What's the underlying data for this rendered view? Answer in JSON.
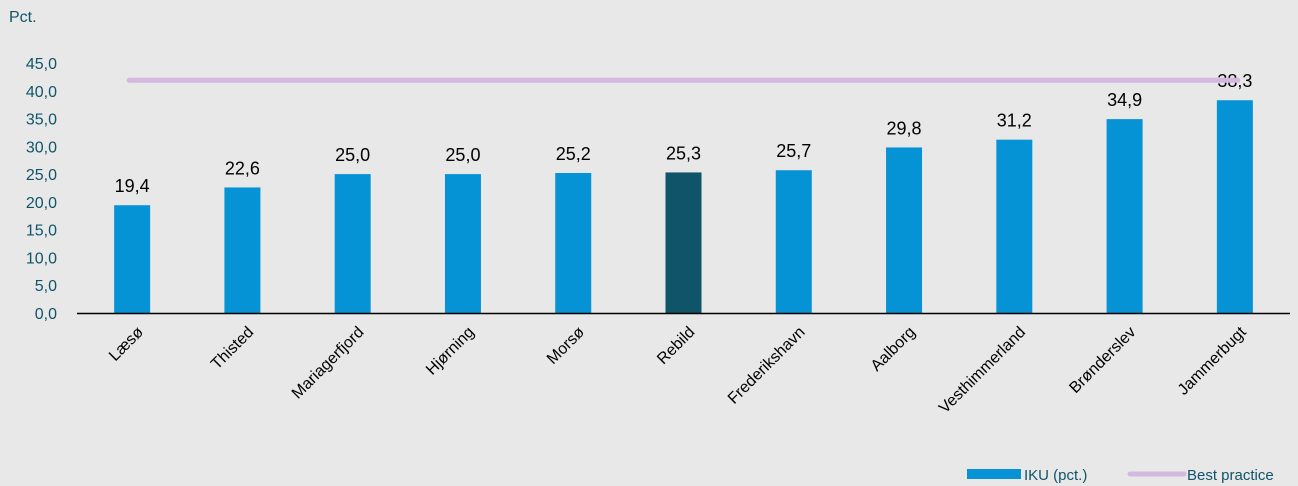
{
  "chart_data": {
    "type": "bar",
    "ylabel": "Pct.",
    "categories": [
      "Læsø",
      "Thisted",
      "Mariagerfjord",
      "Hjørning",
      "Morsø",
      "Rebild",
      "Frederikshavn",
      "Aalborg",
      "Vesthimmerland",
      "Brønderslev",
      "Jammerbugt"
    ],
    "series": [
      {
        "name": "IKU (pct.)",
        "values": [
          19.4,
          22.6,
          25.0,
          25.0,
          25.2,
          25.3,
          25.7,
          29.8,
          31.2,
          34.9,
          38.3
        ],
        "data_labels": [
          "19,4",
          "22,6",
          "25,0",
          "25,0",
          "25,2",
          "25,3",
          "25,7",
          "29,8",
          "31,2",
          "34,9",
          "38,3"
        ]
      },
      {
        "name": "Best practice",
        "type": "line",
        "value": 41.9
      }
    ],
    "highlight_category": "Rebild",
    "ylim": [
      0,
      45
    ],
    "yticks": [
      0,
      5,
      10,
      15,
      20,
      25,
      30,
      35,
      40,
      45
    ],
    "ytick_labels": [
      "0,0",
      "5,0",
      "10,0",
      "15,0",
      "20,0",
      "25,0",
      "30,0",
      "35,0",
      "40,0",
      "45,0"
    ],
    "grid": false,
    "legend": "bottom-right",
    "colors": {
      "bar": "#0693d6",
      "highlight": "#0f5468",
      "best_practice": "#d3b8e0",
      "axis_text": "#0f5468"
    }
  }
}
